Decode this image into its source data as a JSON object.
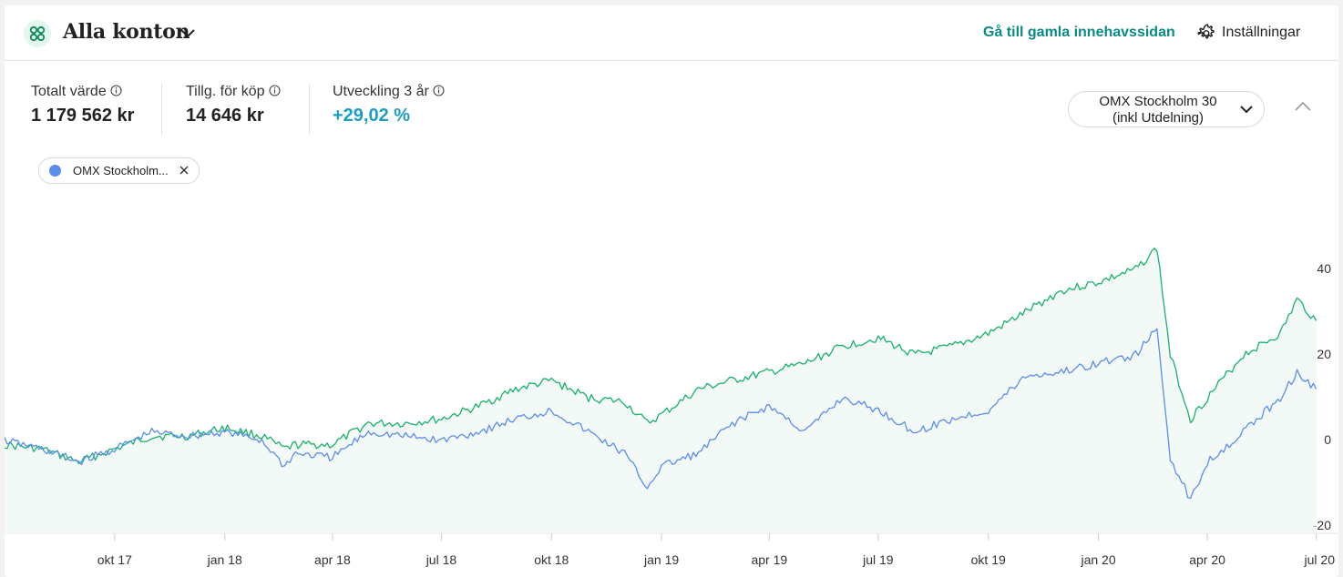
{
  "header": {
    "account_title": "Alla konton",
    "old_holdings_link": "Gå till gamla innehavssidan",
    "settings_label": "Inställningar"
  },
  "stats": [
    {
      "label": "Totalt värde",
      "value": "1 179 562 kr"
    },
    {
      "label": "Tillg. för köp",
      "value": "14 646 kr"
    },
    {
      "label": "Utveckling 3 år",
      "value": "+29,02 %"
    }
  ],
  "benchmark": {
    "selected_line1": "OMX Stockholm 30",
    "selected_line2": "(inkl Utdelning)",
    "chip_label": "OMX Stockholm..."
  },
  "colors": {
    "portfolio": "#17b26a",
    "benchmark": "#5b8def",
    "accent": "#0a8a82",
    "positive": "#1a9dc4"
  },
  "chart_data": {
    "type": "line",
    "x_ticks": [
      "okt 17",
      "jan 18",
      "apr 18",
      "jul 18",
      "okt 18",
      "jan 19",
      "apr 19",
      "jul 19",
      "okt 19",
      "jan 20",
      "apr 20",
      "jul 20"
    ],
    "y_ticks": [
      "40",
      "20",
      "0",
      "-20"
    ],
    "ylim": [
      -20,
      50
    ],
    "series": [
      {
        "name": "",
        "x": [
          "2017-07-01",
          "2017-08-01",
          "2017-09-01",
          "2017-10-01",
          "2017-11-01",
          "2017-12-01",
          "2018-01-01",
          "2018-02-01",
          "2018-02-20",
          "2018-03-01",
          "2018-04-01",
          "2018-05-01",
          "2018-06-01",
          "2018-07-01",
          "2018-08-01",
          "2018-09-01",
          "2018-10-01",
          "2018-11-01",
          "2018-12-01",
          "2018-12-20",
          "2019-01-01",
          "2019-02-01",
          "2019-03-01",
          "2019-04-01",
          "2019-05-01",
          "2019-06-01",
          "2019-07-01",
          "2019-08-01",
          "2019-09-01",
          "2019-10-01",
          "2019-11-01",
          "2019-12-01",
          "2020-01-01",
          "2020-02-01",
          "2020-02-19",
          "2020-03-01",
          "2020-03-18",
          "2020-04-01",
          "2020-05-01",
          "2020-06-01",
          "2020-06-15",
          "2020-07-01"
        ],
        "values": [
          -1,
          -2,
          -5,
          -2,
          1,
          1,
          3,
          1,
          -2,
          -1,
          -1,
          4,
          4,
          5,
          8,
          12,
          14,
          10,
          9,
          4,
          6,
          12,
          14,
          16,
          18,
          22,
          24,
          20,
          22,
          25,
          30,
          35,
          37,
          40,
          45,
          20,
          5,
          10,
          20,
          25,
          33,
          28
        ]
      },
      {
        "name": "OMX Stockholm 30 (inkl Utdelning)",
        "x": [
          "2017-07-01",
          "2017-08-01",
          "2017-09-01",
          "2017-10-01",
          "2017-11-01",
          "2017-12-01",
          "2018-01-01",
          "2018-02-01",
          "2018-02-20",
          "2018-03-01",
          "2018-04-01",
          "2018-05-01",
          "2018-06-01",
          "2018-07-01",
          "2018-08-01",
          "2018-09-01",
          "2018-10-01",
          "2018-11-01",
          "2018-12-01",
          "2018-12-20",
          "2019-01-01",
          "2019-02-01",
          "2019-03-01",
          "2019-04-01",
          "2019-05-01",
          "2019-06-01",
          "2019-07-01",
          "2019-08-01",
          "2019-09-01",
          "2019-10-01",
          "2019-11-01",
          "2019-12-01",
          "2020-01-01",
          "2020-02-01",
          "2020-02-19",
          "2020-03-01",
          "2020-03-18",
          "2020-04-01",
          "2020-05-01",
          "2020-06-01",
          "2020-06-15",
          "2020-07-01"
        ],
        "values": [
          0,
          -2,
          -5,
          -2,
          2,
          1,
          2,
          0,
          -6,
          -3,
          -4,
          2,
          1,
          0,
          2,
          5,
          7,
          2,
          -3,
          -11,
          -6,
          -3,
          4,
          8,
          2,
          10,
          7,
          2,
          5,
          7,
          15,
          16,
          18,
          20,
          26,
          -4,
          -14,
          -5,
          2,
          10,
          16,
          12
        ]
      }
    ]
  }
}
